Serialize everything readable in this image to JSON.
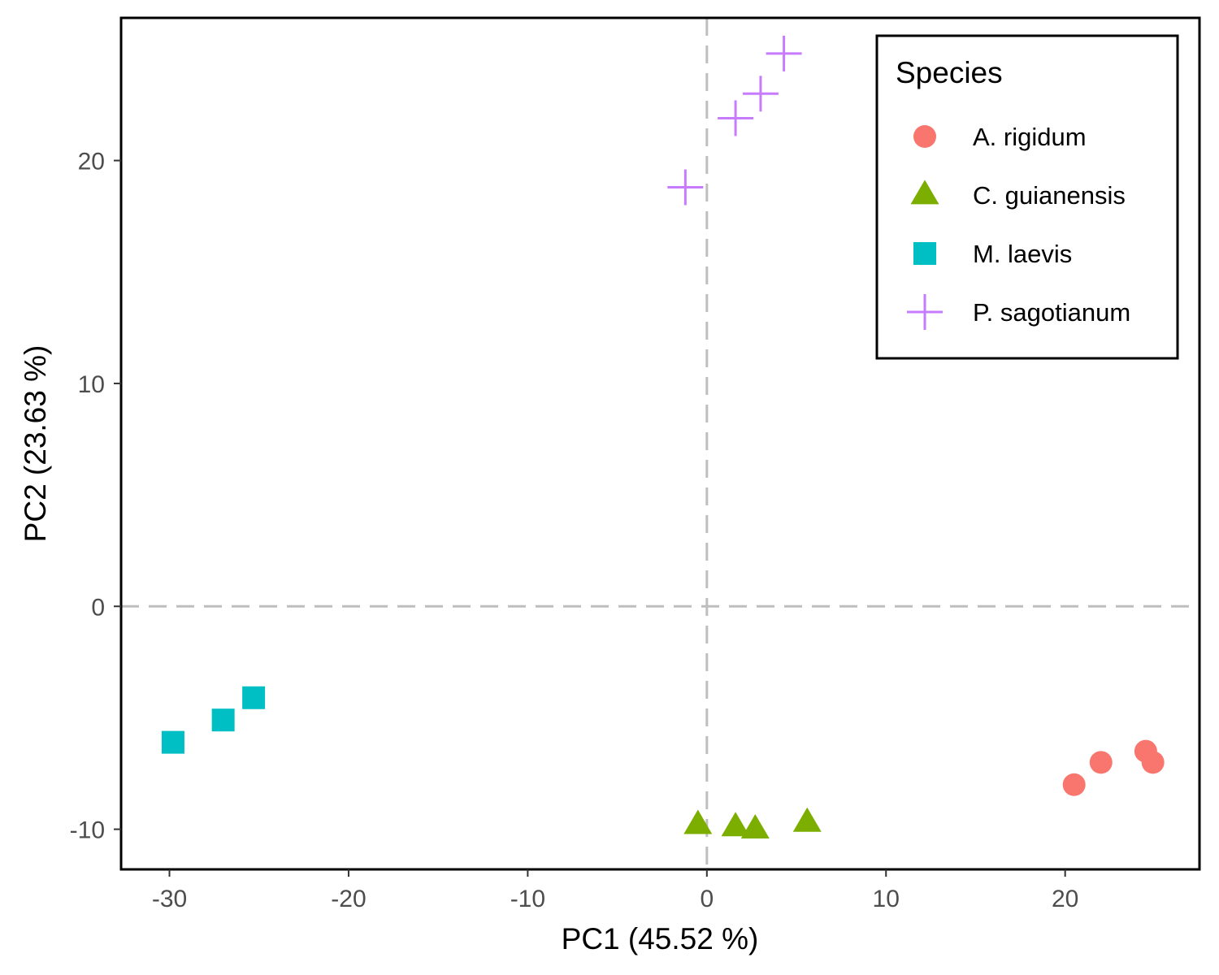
{
  "chart_data": {
    "type": "scatter",
    "xlabel": "PC1 (45.52 %)",
    "ylabel": "PC2 (23.63 %)",
    "xlim": [
      -32.7,
      27.5
    ],
    "ylim": [
      -11.8,
      26.4
    ],
    "x_ticks": [
      -30,
      -20,
      -10,
      0,
      10,
      20
    ],
    "x_tick_labels": [
      "-30",
      "-20",
      "-10",
      "0",
      "10",
      "20"
    ],
    "y_ticks": [
      -10,
      0,
      10,
      20
    ],
    "y_tick_labels": [
      "-10",
      "0",
      "10",
      "20"
    ],
    "grid": false,
    "reference_lines": {
      "x": 0,
      "y": 0,
      "style": "dashed",
      "color": "#bebebe"
    },
    "legend": {
      "title": "Species",
      "position": "top-right"
    },
    "series": [
      {
        "name": "A. rigidum",
        "marker": "circle",
        "color": "#F8766D",
        "points": [
          [
            20.5,
            -8.0
          ],
          [
            22.0,
            -7.0
          ],
          [
            24.5,
            -6.5
          ],
          [
            24.9,
            -7.0
          ]
        ]
      },
      {
        "name": "C. guianensis",
        "marker": "triangle",
        "color": "#7CAE00",
        "points": [
          [
            -0.5,
            -9.8
          ],
          [
            1.6,
            -9.9
          ],
          [
            2.7,
            -10.0
          ],
          [
            5.6,
            -9.7
          ]
        ]
      },
      {
        "name": "M. laevis",
        "marker": "square",
        "color": "#00BFC4",
        "points": [
          [
            -29.8,
            -6.1
          ],
          [
            -27.0,
            -5.1
          ],
          [
            -25.3,
            -4.1
          ]
        ]
      },
      {
        "name": "P. sagotianum",
        "marker": "plus",
        "color": "#C77CFF",
        "points": [
          [
            -1.2,
            18.8
          ],
          [
            1.6,
            21.9
          ],
          [
            3.0,
            23.0
          ],
          [
            4.3,
            24.8
          ]
        ]
      }
    ]
  }
}
